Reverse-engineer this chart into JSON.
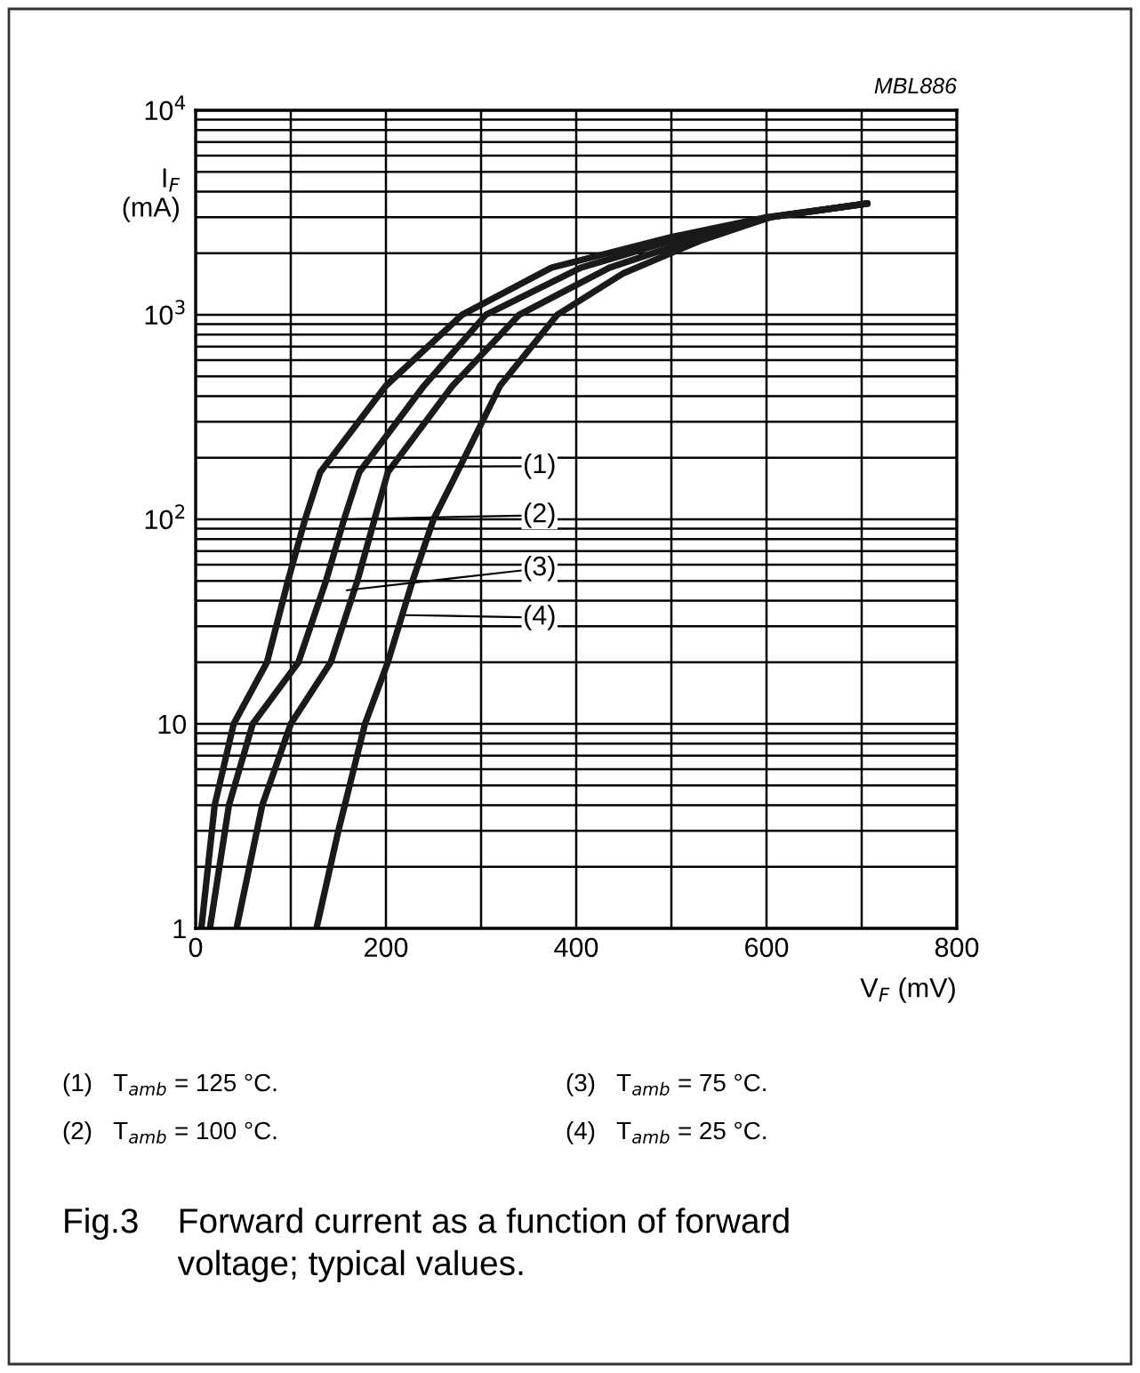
{
  "chart_data": {
    "type": "line",
    "title": "Fig.3    Forward current as a function of forward\n            voltage; typical values.",
    "subtitle": "MBL886",
    "xlabel": "V$_{F}$ (mV)",
    "ylabel": "I$_{F}$\n(mA)",
    "log": "y",
    "grid": true,
    "legend": false,
    "marker": "none",
    "line_style": "solid",
    "xlim": [
      0,
      800
    ],
    "xticks": [
      0,
      {
        "value": 100,
        "label": null
      },
      200,
      {
        "value": 300,
        "label": null
      },
      400,
      {
        "value": 500,
        "label": null
      },
      600,
      {
        "value": 700,
        "label": null
      },
      800
    ],
    "ylim": [
      1,
      10000
    ],
    "yticks": [
      1,
      10,
      {
        "value": 100,
        "label": "10$^{2}$"
      },
      {
        "value": 1000,
        "label": "10$^{3}$"
      },
      {
        "value": 10000,
        "label": "10$^{4}$"
      }
    ],
    "series": [
      {
        "color": "#1a1a1a",
        "x": [
          6,
          20,
          40,
          75,
          97,
          115,
          131,
          200,
          280,
          374,
          500,
          600,
          706
        ],
        "values": [
          1,
          4,
          10,
          20,
          50,
          100,
          170,
          450,
          1000,
          1700,
          2400,
          3000,
          3500
        ]
      },
      {
        "color": "#1a1a1a",
        "x": [
          15,
          35,
          60,
          108,
          137,
          156,
          172,
          240,
          305,
          405,
          500,
          604,
          706
        ],
        "values": [
          1,
          4,
          10,
          20,
          50,
          100,
          170,
          450,
          1000,
          1700,
          2300,
          3000,
          3500
        ]
      },
      {
        "color": "#1a1a1a",
        "x": [
          43,
          70,
          100,
          142,
          170,
          188,
          202,
          270,
          340,
          435,
          520,
          604,
          706
        ],
        "values": [
          1,
          4,
          10,
          20,
          50,
          100,
          170,
          450,
          1000,
          1700,
          2300,
          3000,
          3500
        ]
      },
      {
        "color": "#1a1a1a",
        "x": [
          127,
          150,
          178,
          202,
          228,
          250,
          275,
          320,
          380,
          450,
          530,
          604,
          706
        ],
        "values": [
          1,
          3,
          10,
          20,
          50,
          100,
          170,
          450,
          1000,
          1600,
          2300,
          3000,
          3500
        ]
      }
    ],
    "annotations": [
      {
        "text": "(1)",
        "x": 140,
        "y": 180
      },
      {
        "text": "(2)",
        "x": 155,
        "y": 100
      },
      {
        "text": "(3)",
        "x": 159,
        "y": 45
      },
      {
        "text": "(4)",
        "x": 221,
        "y": 34
      },
      "(1)   T$_{amb}$ = 125 °C.",
      "(2)   T$_{amb}$ = 100 °C.",
      "(3)   T$_{amb}$ = 75 °C.",
      "(4)   T$_{amb}$ = 25 °C."
    ]
  }
}
